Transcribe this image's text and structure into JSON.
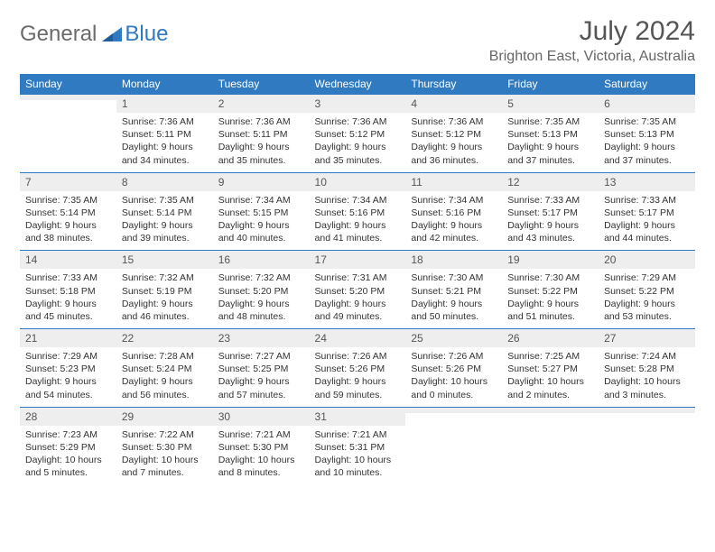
{
  "logo": {
    "text1": "General",
    "text2": "Blue"
  },
  "title": "July 2024",
  "location": "Brighton East, Victoria, Australia",
  "colors": {
    "accent": "#2f7ac0",
    "shade": "#eeeeee",
    "text": "#333333"
  },
  "dayNames": [
    "Sunday",
    "Monday",
    "Tuesday",
    "Wednesday",
    "Thursday",
    "Friday",
    "Saturday"
  ],
  "weeks": [
    [
      {
        "n": "",
        "lines": [
          "",
          "",
          "",
          ""
        ]
      },
      {
        "n": "1",
        "lines": [
          "Sunrise: 7:36 AM",
          "Sunset: 5:11 PM",
          "Daylight: 9 hours",
          "and 34 minutes."
        ]
      },
      {
        "n": "2",
        "lines": [
          "Sunrise: 7:36 AM",
          "Sunset: 5:11 PM",
          "Daylight: 9 hours",
          "and 35 minutes."
        ]
      },
      {
        "n": "3",
        "lines": [
          "Sunrise: 7:36 AM",
          "Sunset: 5:12 PM",
          "Daylight: 9 hours",
          "and 35 minutes."
        ]
      },
      {
        "n": "4",
        "lines": [
          "Sunrise: 7:36 AM",
          "Sunset: 5:12 PM",
          "Daylight: 9 hours",
          "and 36 minutes."
        ]
      },
      {
        "n": "5",
        "lines": [
          "Sunrise: 7:35 AM",
          "Sunset: 5:13 PM",
          "Daylight: 9 hours",
          "and 37 minutes."
        ]
      },
      {
        "n": "6",
        "lines": [
          "Sunrise: 7:35 AM",
          "Sunset: 5:13 PM",
          "Daylight: 9 hours",
          "and 37 minutes."
        ]
      }
    ],
    [
      {
        "n": "7",
        "lines": [
          "Sunrise: 7:35 AM",
          "Sunset: 5:14 PM",
          "Daylight: 9 hours",
          "and 38 minutes."
        ]
      },
      {
        "n": "8",
        "lines": [
          "Sunrise: 7:35 AM",
          "Sunset: 5:14 PM",
          "Daylight: 9 hours",
          "and 39 minutes."
        ]
      },
      {
        "n": "9",
        "lines": [
          "Sunrise: 7:34 AM",
          "Sunset: 5:15 PM",
          "Daylight: 9 hours",
          "and 40 minutes."
        ]
      },
      {
        "n": "10",
        "lines": [
          "Sunrise: 7:34 AM",
          "Sunset: 5:16 PM",
          "Daylight: 9 hours",
          "and 41 minutes."
        ]
      },
      {
        "n": "11",
        "lines": [
          "Sunrise: 7:34 AM",
          "Sunset: 5:16 PM",
          "Daylight: 9 hours",
          "and 42 minutes."
        ]
      },
      {
        "n": "12",
        "lines": [
          "Sunrise: 7:33 AM",
          "Sunset: 5:17 PM",
          "Daylight: 9 hours",
          "and 43 minutes."
        ]
      },
      {
        "n": "13",
        "lines": [
          "Sunrise: 7:33 AM",
          "Sunset: 5:17 PM",
          "Daylight: 9 hours",
          "and 44 minutes."
        ]
      }
    ],
    [
      {
        "n": "14",
        "lines": [
          "Sunrise: 7:33 AM",
          "Sunset: 5:18 PM",
          "Daylight: 9 hours",
          "and 45 minutes."
        ]
      },
      {
        "n": "15",
        "lines": [
          "Sunrise: 7:32 AM",
          "Sunset: 5:19 PM",
          "Daylight: 9 hours",
          "and 46 minutes."
        ]
      },
      {
        "n": "16",
        "lines": [
          "Sunrise: 7:32 AM",
          "Sunset: 5:20 PM",
          "Daylight: 9 hours",
          "and 48 minutes."
        ]
      },
      {
        "n": "17",
        "lines": [
          "Sunrise: 7:31 AM",
          "Sunset: 5:20 PM",
          "Daylight: 9 hours",
          "and 49 minutes."
        ]
      },
      {
        "n": "18",
        "lines": [
          "Sunrise: 7:30 AM",
          "Sunset: 5:21 PM",
          "Daylight: 9 hours",
          "and 50 minutes."
        ]
      },
      {
        "n": "19",
        "lines": [
          "Sunrise: 7:30 AM",
          "Sunset: 5:22 PM",
          "Daylight: 9 hours",
          "and 51 minutes."
        ]
      },
      {
        "n": "20",
        "lines": [
          "Sunrise: 7:29 AM",
          "Sunset: 5:22 PM",
          "Daylight: 9 hours",
          "and 53 minutes."
        ]
      }
    ],
    [
      {
        "n": "21",
        "lines": [
          "Sunrise: 7:29 AM",
          "Sunset: 5:23 PM",
          "Daylight: 9 hours",
          "and 54 minutes."
        ]
      },
      {
        "n": "22",
        "lines": [
          "Sunrise: 7:28 AM",
          "Sunset: 5:24 PM",
          "Daylight: 9 hours",
          "and 56 minutes."
        ]
      },
      {
        "n": "23",
        "lines": [
          "Sunrise: 7:27 AM",
          "Sunset: 5:25 PM",
          "Daylight: 9 hours",
          "and 57 minutes."
        ]
      },
      {
        "n": "24",
        "lines": [
          "Sunrise: 7:26 AM",
          "Sunset: 5:26 PM",
          "Daylight: 9 hours",
          "and 59 minutes."
        ]
      },
      {
        "n": "25",
        "lines": [
          "Sunrise: 7:26 AM",
          "Sunset: 5:26 PM",
          "Daylight: 10 hours",
          "and 0 minutes."
        ]
      },
      {
        "n": "26",
        "lines": [
          "Sunrise: 7:25 AM",
          "Sunset: 5:27 PM",
          "Daylight: 10 hours",
          "and 2 minutes."
        ]
      },
      {
        "n": "27",
        "lines": [
          "Sunrise: 7:24 AM",
          "Sunset: 5:28 PM",
          "Daylight: 10 hours",
          "and 3 minutes."
        ]
      }
    ],
    [
      {
        "n": "28",
        "lines": [
          "Sunrise: 7:23 AM",
          "Sunset: 5:29 PM",
          "Daylight: 10 hours",
          "and 5 minutes."
        ]
      },
      {
        "n": "29",
        "lines": [
          "Sunrise: 7:22 AM",
          "Sunset: 5:30 PM",
          "Daylight: 10 hours",
          "and 7 minutes."
        ]
      },
      {
        "n": "30",
        "lines": [
          "Sunrise: 7:21 AM",
          "Sunset: 5:30 PM",
          "Daylight: 10 hours",
          "and 8 minutes."
        ]
      },
      {
        "n": "31",
        "lines": [
          "Sunrise: 7:21 AM",
          "Sunset: 5:31 PM",
          "Daylight: 10 hours",
          "and 10 minutes."
        ]
      },
      {
        "n": "",
        "lines": [
          "",
          "",
          "",
          ""
        ]
      },
      {
        "n": "",
        "lines": [
          "",
          "",
          "",
          ""
        ]
      },
      {
        "n": "",
        "lines": [
          "",
          "",
          "",
          ""
        ]
      }
    ]
  ]
}
